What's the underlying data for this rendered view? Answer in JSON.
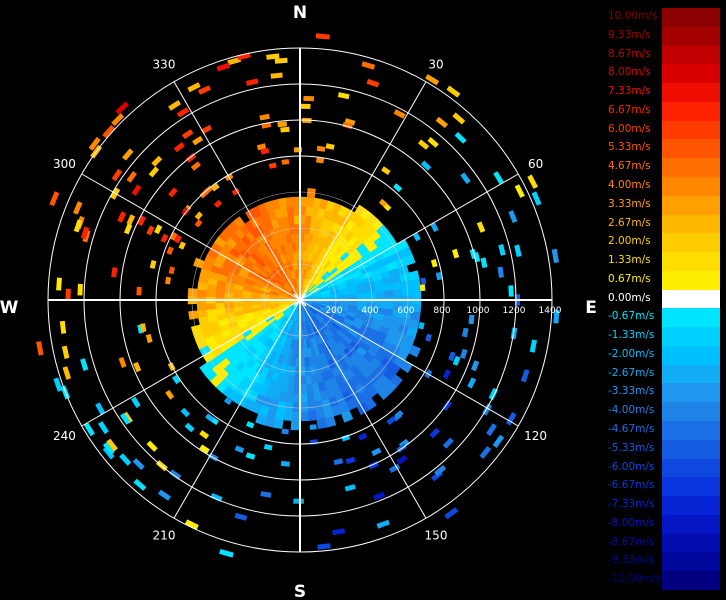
{
  "radar": {
    "compass": {
      "north": "N",
      "east": "E",
      "south": "S",
      "west": "W"
    },
    "azimuth_labels": [
      {
        "deg": 30,
        "text": "30"
      },
      {
        "deg": 60,
        "text": "60"
      },
      {
        "deg": 120,
        "text": "120"
      },
      {
        "deg": 150,
        "text": "150"
      },
      {
        "deg": 210,
        "text": "210"
      },
      {
        "deg": 240,
        "text": "240"
      },
      {
        "deg": 300,
        "text": "300"
      },
      {
        "deg": 330,
        "text": "330"
      }
    ],
    "range_labels": [
      "200",
      "400",
      "600",
      "800",
      "1000",
      "1200",
      "1400"
    ],
    "max_range": 1400
  },
  "legend": {
    "items": [
      {
        "label": "10.00m/s",
        "color": "#8b0000"
      },
      {
        "label": "9.33m/s",
        "color": "#a50000"
      },
      {
        "label": "8.67m/s",
        "color": "#c00000"
      },
      {
        "label": "8.00m/s",
        "color": "#d80000"
      },
      {
        "label": "7.33m/s",
        "color": "#ee0d00"
      },
      {
        "label": "6.67m/s",
        "color": "#ff2200"
      },
      {
        "label": "6.00m/s",
        "color": "#ff3c00"
      },
      {
        "label": "5.33m/s",
        "color": "#ff5500"
      },
      {
        "label": "4.67m/s",
        "color": "#ff6e00"
      },
      {
        "label": "4.00m/s",
        "color": "#ff8700"
      },
      {
        "label": "3.33m/s",
        "color": "#ffa000"
      },
      {
        "label": "2.67m/s",
        "color": "#ffb800"
      },
      {
        "label": "2.00m/s",
        "color": "#ffcc00"
      },
      {
        "label": "1.33m/s",
        "color": "#ffdd00"
      },
      {
        "label": "0.67m/s",
        "color": "#ffee00"
      },
      {
        "label": "0.00m/s",
        "color": "#ffffff"
      },
      {
        "label": "-0.67m/s",
        "color": "#00e5ff"
      },
      {
        "label": "-1.33m/s",
        "color": "#00d2ff"
      },
      {
        "label": "-2.00m/s",
        "color": "#00bfff"
      },
      {
        "label": "-2.67m/s",
        "color": "#10acf5"
      },
      {
        "label": "-3.33m/s",
        "color": "#1e98ee"
      },
      {
        "label": "-4.00m/s",
        "color": "#1e84e8"
      },
      {
        "label": "-4.67m/s",
        "color": "#1a70e4"
      },
      {
        "label": "-5.33m/s",
        "color": "#145ce2"
      },
      {
        "label": "-6.00m/s",
        "color": "#0e48e0"
      },
      {
        "label": "-6.67m/s",
        "color": "#0a36de"
      },
      {
        "label": "-7.33m/s",
        "color": "#0624d4"
      },
      {
        "label": "-8.00m/s",
        "color": "#0416c4"
      },
      {
        "label": "-8.67m/s",
        "color": "#020cb0"
      },
      {
        "label": "-9.33m/s",
        "color": "#01069a"
      },
      {
        "label": "-10.00m/s",
        "color": "#000080"
      }
    ]
  }
}
